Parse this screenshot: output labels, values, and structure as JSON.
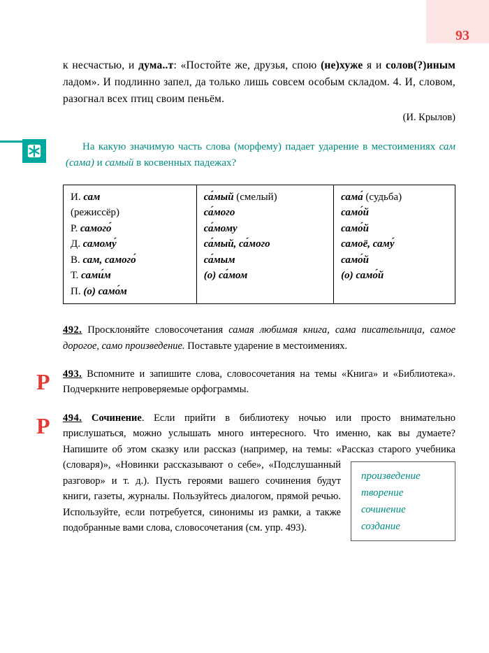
{
  "page_number": "93",
  "colors": {
    "accent_red": "#e53935",
    "accent_teal": "#00a79d",
    "teal_text": "#008a80",
    "corner_bg": "#fce4e4"
  },
  "top_paragraph": {
    "html": "к несчастью, и дума..т: «Постойте же, друзья, спою (не)хуже я и солов(?)иным ладом». И подлинно запел, да только лишь совсем особым складом. 4. И, словом, разогнал всех птиц своим пеньём."
  },
  "attribution": "(И. Крылов)",
  "teal_question": "На какую значимую часть слова (морфему) падает ударение в местоимениях <i>сам (сама)</i> и <i>самый</i> в кос­венных падежах?",
  "table": {
    "col1": {
      "header": "И. <span class='it'>сам</span><br><span class='reg'>(режиссёр)</span>",
      "rows": [
        "Р. <span class='it'>самого́</span>",
        "Д. <span class='it'>самому́</span>",
        "В. <span class='it'>сам, самого́</span>",
        "Т. <span class='it'>сами́м</span>",
        "П. <span class='it'>(о) само́м</span>"
      ]
    },
    "col2": {
      "header": "<span class='it'>са́мый</span> <span class='reg'>(смелый)</span>",
      "rows": [
        "<span class='it'>са́мого</span>",
        "<span class='it'>са́мому</span>",
        "<span class='it'>са́мый, са́мого</span>",
        "<span class='it'>са́мым</span>",
        "<span class='it'>(о) са́мом</span>"
      ]
    },
    "col3": {
      "header": "<span class='it'>сама́</span> <span class='reg'>(судьба)</span>",
      "rows": [
        "<span class='it'>само́й</span>",
        "<span class='it'>само́й</span>",
        "<span class='it'>самоё, саму́</span>",
        "<span class='it'>само́й</span>",
        "<span class='it'>(о) само́й</span>"
      ]
    }
  },
  "ex492": {
    "num": "492.",
    "text": " Просклоняйте словосочетания <i class='ex-i'>самая любимая книга, сама писа­тельница, самое дорогое, само произведение.</i> Поставьте ударение в ме­стоимениях."
  },
  "ex493": {
    "mark": "Р",
    "num": "493.",
    "text": " Вспомните и запишите слова, словосочетания на темы «Кни­га» и «Библиотека». Подчеркните непроверяемые орфограммы."
  },
  "ex494": {
    "mark": "Р",
    "num": "494.",
    "title": " Сочинение",
    "text": ". Если прийти в библиотеку ночью или просто внимательно прислушаться, можно услышать много интересного. Что именно, как вы думаете? Напишите об этом сказку или рассказ (например, на темы: «Рассказ старого учебника (словаря)», «Новин­ки рассказывают о себе», «Подслушанный разговор» и т. д.). Пусть героями вашего сочинения будут книги, газеты, журналы. Пользуйтесь диалогом, прямой речью. Ис­пользуйте, если потребуется, синонимы из рамки, а также подобранные вами слова, словосочетания (см. упр. 493)."
  },
  "word_box": [
    "произведение",
    "творение",
    "сочинение",
    "создание"
  ]
}
